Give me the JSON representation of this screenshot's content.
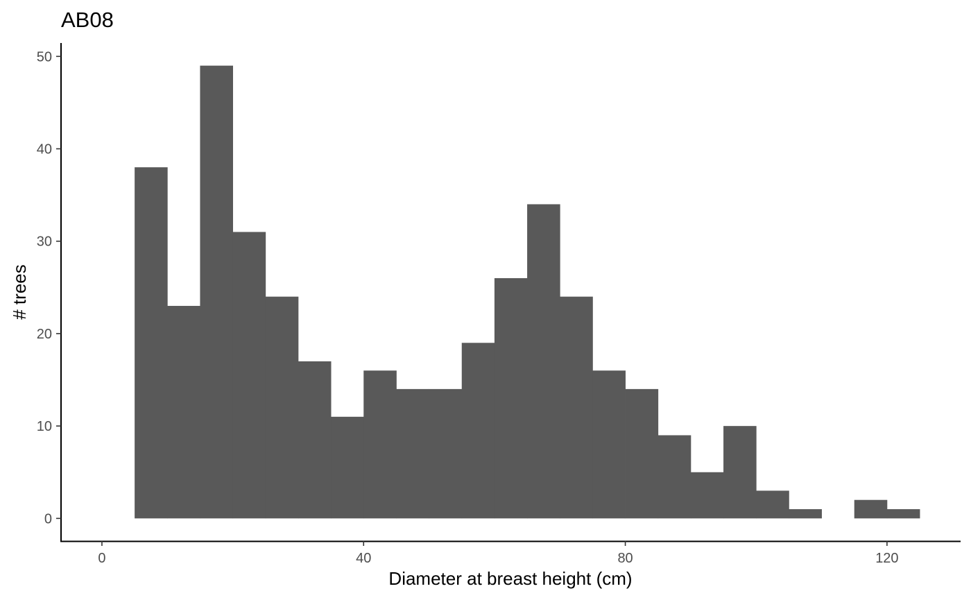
{
  "chart_data": {
    "type": "bar",
    "title": "AB08",
    "xlabel": "Diameter at breast height (cm)",
    "ylabel": "# trees",
    "bin_width": 5,
    "bins": [
      {
        "x0": 5,
        "x1": 10,
        "count": 38
      },
      {
        "x0": 10,
        "x1": 15,
        "count": 23
      },
      {
        "x0": 15,
        "x1": 20,
        "count": 49
      },
      {
        "x0": 20,
        "x1": 25,
        "count": 31
      },
      {
        "x0": 25,
        "x1": 30,
        "count": 24
      },
      {
        "x0": 30,
        "x1": 35,
        "count": 17
      },
      {
        "x0": 35,
        "x1": 40,
        "count": 11
      },
      {
        "x0": 40,
        "x1": 45,
        "count": 16
      },
      {
        "x0": 45,
        "x1": 50,
        "count": 14
      },
      {
        "x0": 50,
        "x1": 55,
        "count": 14
      },
      {
        "x0": 55,
        "x1": 60,
        "count": 19
      },
      {
        "x0": 60,
        "x1": 65,
        "count": 26
      },
      {
        "x0": 65,
        "x1": 70,
        "count": 34
      },
      {
        "x0": 70,
        "x1": 75,
        "count": 24
      },
      {
        "x0": 75,
        "x1": 80,
        "count": 16
      },
      {
        "x0": 80,
        "x1": 85,
        "count": 14
      },
      {
        "x0": 85,
        "x1": 90,
        "count": 9
      },
      {
        "x0": 90,
        "x1": 95,
        "count": 5
      },
      {
        "x0": 95,
        "x1": 100,
        "count": 10
      },
      {
        "x0": 100,
        "x1": 105,
        "count": 3
      },
      {
        "x0": 105,
        "x1": 110,
        "count": 1
      },
      {
        "x0": 110,
        "x1": 115,
        "count": 0
      },
      {
        "x0": 115,
        "x1": 120,
        "count": 2
      },
      {
        "x0": 120,
        "x1": 125,
        "count": 1
      }
    ],
    "xlim": [
      -6.25,
      131.25
    ],
    "ylim": [
      -2.45,
      51.45
    ],
    "xticks": [
      0,
      40,
      80,
      120
    ],
    "xtick_labels": [
      "0",
      "40",
      "80",
      "120"
    ],
    "yticks": [
      0,
      10,
      20,
      30,
      40,
      50
    ],
    "ytick_labels": [
      "0",
      "10",
      "20",
      "30",
      "40",
      "50"
    ],
    "grid": false,
    "bar_color": "#595959"
  }
}
